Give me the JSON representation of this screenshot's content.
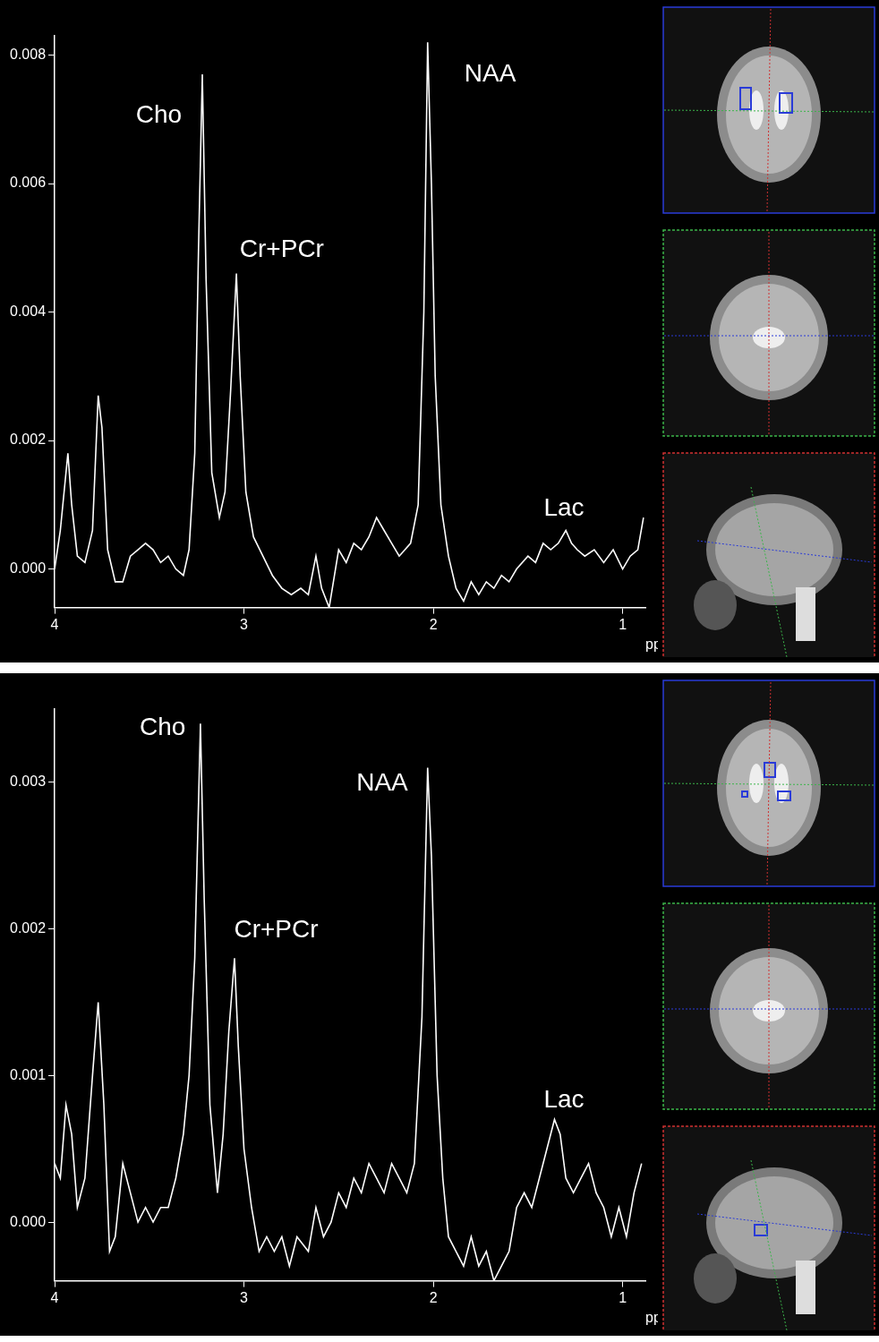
{
  "chart_data": [
    {
      "type": "line",
      "color": "#ffffff",
      "grid": false,
      "xlim": [
        4.0,
        0.88
      ],
      "xticks": [
        4,
        3,
        2,
        1
      ],
      "x_label": "ppm",
      "ylim": [
        -0.0006,
        0.0083
      ],
      "yticks": [
        {
          "value": 0,
          "label": "0.000"
        },
        {
          "value": 0.002,
          "label": "0.002"
        },
        {
          "value": 0.004,
          "label": "0.004"
        },
        {
          "value": 0.006,
          "label": "0.006"
        },
        {
          "value": 0.008,
          "label": "0.008"
        }
      ],
      "annotations": [
        {
          "text": "Cho",
          "x": 3.45,
          "y": 0.00705
        },
        {
          "text": "Cr+PCr",
          "x": 2.8,
          "y": 0.00497
        },
        {
          "text": "NAA",
          "x": 1.7,
          "y": 0.0077
        },
        {
          "text": "Lac",
          "x": 1.31,
          "y": 0.00094
        }
      ],
      "x": [
        4.0,
        3.97,
        3.93,
        3.91,
        3.88,
        3.84,
        3.8,
        3.77,
        3.75,
        3.72,
        3.68,
        3.64,
        3.6,
        3.56,
        3.52,
        3.48,
        3.44,
        3.4,
        3.36,
        3.32,
        3.29,
        3.26,
        3.24,
        3.22,
        3.2,
        3.17,
        3.13,
        3.1,
        3.07,
        3.04,
        3.02,
        2.99,
        2.95,
        2.9,
        2.85,
        2.8,
        2.75,
        2.7,
        2.66,
        2.62,
        2.59,
        2.55,
        2.5,
        2.46,
        2.42,
        2.38,
        2.34,
        2.3,
        2.26,
        2.22,
        2.18,
        2.12,
        2.08,
        2.05,
        2.03,
        2.01,
        1.99,
        1.96,
        1.92,
        1.88,
        1.84,
        1.8,
        1.76,
        1.72,
        1.68,
        1.64,
        1.6,
        1.56,
        1.5,
        1.46,
        1.42,
        1.38,
        1.34,
        1.3,
        1.27,
        1.24,
        1.2,
        1.15,
        1.1,
        1.05,
        1.0,
        0.96,
        0.92,
        0.89
      ],
      "values": [
        0.0,
        0.0006,
        0.0018,
        0.001,
        0.0002,
        0.0001,
        0.0006,
        0.0027,
        0.0022,
        0.0003,
        -0.0002,
        -0.0002,
        0.0002,
        0.0003,
        0.0004,
        0.0003,
        0.0001,
        0.0002,
        0.0,
        -0.0001,
        0.0003,
        0.0018,
        0.005,
        0.0077,
        0.0045,
        0.0015,
        0.0008,
        0.0012,
        0.0028,
        0.0046,
        0.003,
        0.0012,
        0.0005,
        0.0002,
        -0.0001,
        -0.0003,
        -0.0004,
        -0.0003,
        -0.0004,
        0.0002,
        -0.0003,
        -0.0006,
        0.0003,
        0.0001,
        0.0004,
        0.0003,
        0.0005,
        0.0008,
        0.0006,
        0.0004,
        0.0002,
        0.0004,
        0.001,
        0.004,
        0.0082,
        0.006,
        0.003,
        0.001,
        0.0002,
        -0.0003,
        -0.0005,
        -0.0002,
        -0.0004,
        -0.0002,
        -0.0003,
        -0.0001,
        -0.0002,
        0.0,
        0.0002,
        0.0001,
        0.0004,
        0.0003,
        0.0004,
        0.0006,
        0.0004,
        0.0003,
        0.0002,
        0.0003,
        0.0001,
        0.0003,
        0.0,
        0.0002,
        0.0003,
        0.0008
      ]
    },
    {
      "type": "line",
      "color": "#ffffff",
      "grid": false,
      "xlim": [
        4.0,
        0.88
      ],
      "xticks": [
        4,
        3,
        2,
        1
      ],
      "x_label": "ppm",
      "ylim": [
        -0.0004,
        0.0035
      ],
      "yticks": [
        {
          "value": 0,
          "label": "0.000"
        },
        {
          "value": 0.001,
          "label": "0.001"
        },
        {
          "value": 0.002,
          "label": "0.002"
        },
        {
          "value": 0.003,
          "label": "0.003"
        }
      ],
      "annotations": [
        {
          "text": "Cho",
          "x": 3.43,
          "y": 0.00337
        },
        {
          "text": "Cr+PCr",
          "x": 2.83,
          "y": 0.00199
        },
        {
          "text": "NAA",
          "x": 2.27,
          "y": 0.00299
        },
        {
          "text": "Lac",
          "x": 1.31,
          "y": 0.00083
        }
      ],
      "x": [
        4.0,
        3.97,
        3.94,
        3.91,
        3.88,
        3.84,
        3.8,
        3.77,
        3.74,
        3.71,
        3.68,
        3.64,
        3.6,
        3.56,
        3.52,
        3.48,
        3.44,
        3.4,
        3.36,
        3.32,
        3.29,
        3.26,
        3.23,
        3.21,
        3.18,
        3.14,
        3.11,
        3.08,
        3.05,
        3.03,
        3.0,
        2.96,
        2.92,
        2.88,
        2.84,
        2.8,
        2.76,
        2.72,
        2.66,
        2.62,
        2.58,
        2.54,
        2.5,
        2.46,
        2.42,
        2.38,
        2.34,
        2.3,
        2.26,
        2.22,
        2.18,
        2.14,
        2.1,
        2.06,
        2.03,
        2.01,
        1.98,
        1.95,
        1.92,
        1.88,
        1.84,
        1.8,
        1.76,
        1.72,
        1.68,
        1.64,
        1.6,
        1.56,
        1.52,
        1.48,
        1.44,
        1.4,
        1.36,
        1.33,
        1.3,
        1.26,
        1.22,
        1.18,
        1.14,
        1.1,
        1.06,
        1.02,
        0.98,
        0.94,
        0.9
      ],
      "values": [
        0.0004,
        0.0003,
        0.0008,
        0.0006,
        0.0001,
        0.0003,
        0.001,
        0.0015,
        0.0008,
        -0.0002,
        -0.0001,
        0.0004,
        0.0002,
        0.0,
        0.0001,
        0.0,
        0.0001,
        0.0001,
        0.0003,
        0.0006,
        0.001,
        0.0018,
        0.0034,
        0.0022,
        0.0008,
        0.0002,
        0.0006,
        0.0013,
        0.0018,
        0.0012,
        0.0005,
        0.0001,
        -0.0002,
        -0.0001,
        -0.0002,
        -0.0001,
        -0.0003,
        -0.0001,
        -0.0002,
        0.0001,
        -0.0001,
        0.0,
        0.0002,
        0.0001,
        0.0003,
        0.0002,
        0.0004,
        0.0003,
        0.0002,
        0.0004,
        0.0003,
        0.0002,
        0.0004,
        0.0014,
        0.0031,
        0.0025,
        0.001,
        0.0003,
        -0.0001,
        -0.0002,
        -0.0003,
        -0.0001,
        -0.0003,
        -0.0002,
        -0.0004,
        -0.0003,
        -0.0002,
        0.0001,
        0.0002,
        0.0001,
        0.0003,
        0.0005,
        0.0007,
        0.0006,
        0.0003,
        0.0002,
        0.0003,
        0.0004,
        0.0002,
        0.0001,
        -0.0001,
        0.0001,
        -0.0001,
        0.0002,
        0.0004
      ]
    }
  ]
}
